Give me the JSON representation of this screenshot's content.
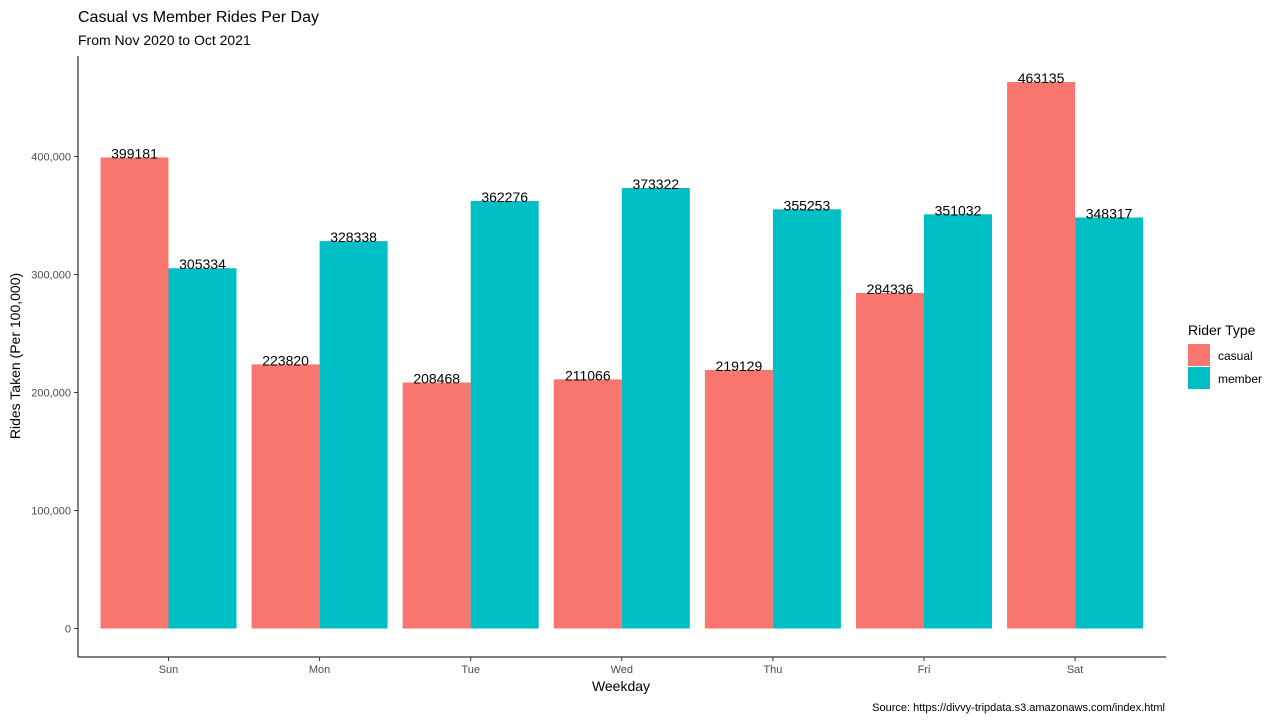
{
  "chart_data": {
    "type": "bar",
    "title": "Casual vs Member Rides Per Day",
    "subtitle": "From Nov 2020 to Oct 2021",
    "xlabel": "Weekday",
    "ylabel": "Rides Taken (Per 100,000)",
    "caption": "Source: https://divvy-tripdata.s3.amazonaws.com/index.html",
    "categories": [
      "Sun",
      "Mon",
      "Tue",
      "Wed",
      "Thu",
      "Fri",
      "Sat"
    ],
    "series": [
      {
        "name": "casual",
        "color": "#F8766D",
        "values": [
          399181,
          223820,
          208468,
          211066,
          219129,
          284336,
          463135
        ]
      },
      {
        "name": "member",
        "color": "#00BFC4",
        "values": [
          305334,
          328338,
          362276,
          373322,
          355253,
          351032,
          348317
        ]
      }
    ],
    "ylim": [
      0,
      486000
    ],
    "yticks": [
      0,
      100000,
      200000,
      300000,
      400000
    ],
    "ytick_labels": [
      "0",
      "100,000",
      "200,000",
      "300,000",
      "400,000"
    ],
    "legend": {
      "title": "Rider Type",
      "placement": "right"
    },
    "grid": false
  }
}
